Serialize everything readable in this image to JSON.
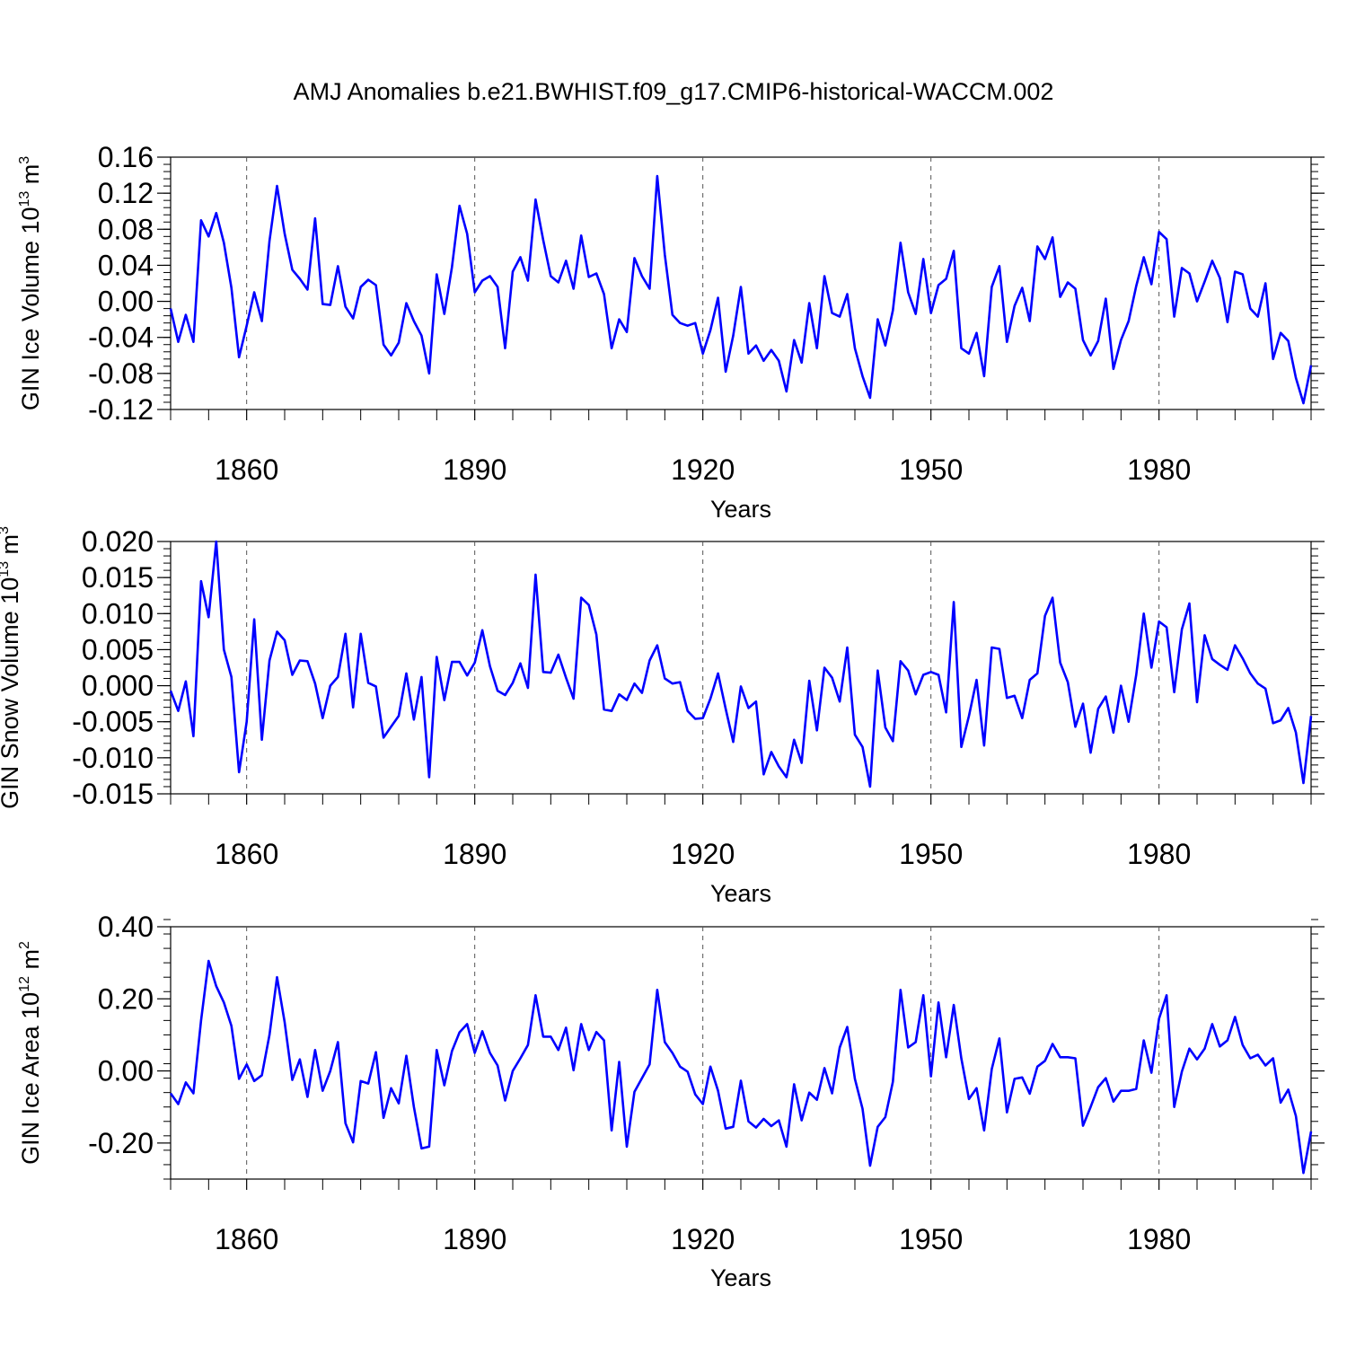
{
  "title": "AMJ Anomalies b.e21.BWHIST.f09_g17.CMIP6-historical-WACCM.002",
  "colors": {
    "line": "#0000ff",
    "axis": "#000000",
    "grid": "#555555"
  },
  "chart_data": [
    {
      "type": "line",
      "ylabel": {
        "text": "GIN Ice Volume 10",
        "sup": "13",
        "unit": " m",
        "unit_sup": "3"
      },
      "xlabel": "Years",
      "xlim": [
        1850,
        2000
      ],
      "ylim": [
        -0.12,
        0.16
      ],
      "x_ticks": [
        1860,
        1890,
        1920,
        1950,
        1980
      ],
      "y_ticks": [
        {
          "v": 0.16,
          "label": "0.16"
        },
        {
          "v": 0.12,
          "label": "0.12"
        },
        {
          "v": 0.08,
          "label": "0.08"
        },
        {
          "v": 0.04,
          "label": "0.04"
        },
        {
          "v": 0.0,
          "label": "0.00"
        },
        {
          "v": -0.04,
          "label": "-0.04"
        },
        {
          "v": -0.08,
          "label": "-0.08"
        },
        {
          "v": -0.12,
          "label": "-0.12"
        }
      ],
      "y_minor_step": 0.008,
      "x_start": 1850,
      "values": [
        -0.008,
        -0.045,
        -0.015,
        -0.045,
        0.09,
        0.072,
        0.098,
        0.065,
        0.015,
        -0.062,
        -0.027,
        0.01,
        -0.022,
        0.067,
        0.128,
        0.075,
        0.035,
        0.025,
        0.013,
        0.092,
        -0.003,
        -0.004,
        0.039,
        -0.006,
        -0.019,
        0.016,
        0.024,
        0.018,
        -0.048,
        -0.06,
        -0.046,
        -0.002,
        -0.022,
        -0.038,
        -0.08,
        0.03,
        -0.014,
        0.038,
        0.106,
        0.075,
        0.01,
        0.023,
        0.028,
        0.016,
        -0.052,
        0.033,
        0.049,
        0.023,
        0.113,
        0.068,
        0.028,
        0.021,
        0.045,
        0.014,
        0.073,
        0.027,
        0.031,
        0.008,
        -0.052,
        -0.02,
        -0.034,
        0.048,
        0.028,
        0.014,
        0.139,
        0.052,
        -0.015,
        -0.024,
        -0.027,
        -0.024,
        -0.058,
        -0.032,
        0.004,
        -0.078,
        -0.038,
        0.016,
        -0.058,
        -0.049,
        -0.066,
        -0.054,
        -0.066,
        -0.1,
        -0.043,
        -0.068,
        -0.002,
        -0.052,
        0.028,
        -0.013,
        -0.017,
        0.008,
        -0.052,
        -0.083,
        -0.107,
        -0.02,
        -0.049,
        -0.01,
        0.065,
        0.01,
        -0.014,
        0.047,
        -0.013,
        0.018,
        0.025,
        0.056,
        -0.052,
        -0.058,
        -0.035,
        -0.083,
        0.016,
        0.039,
        -0.045,
        -0.005,
        0.015,
        -0.022,
        0.061,
        0.047,
        0.071,
        0.005,
        0.021,
        0.014,
        -0.043,
        -0.06,
        -0.044,
        0.003,
        -0.075,
        -0.043,
        -0.022,
        0.017,
        0.049,
        0.019,
        0.077,
        0.069,
        -0.017,
        0.037,
        0.031,
        0.0,
        0.022,
        0.045,
        0.026,
        -0.023,
        0.033,
        0.03,
        -0.008,
        -0.017,
        0.02,
        -0.064,
        -0.035,
        -0.044,
        -0.085,
        -0.113,
        -0.071
      ]
    },
    {
      "type": "line",
      "ylabel": {
        "text": "GIN Snow Volume 10",
        "sup": "13",
        "unit": " m",
        "unit_sup": "3"
      },
      "xlabel": "Years",
      "xlim": [
        1850,
        2000
      ],
      "ylim": [
        -0.015,
        0.02
      ],
      "x_ticks": [
        1860,
        1890,
        1920,
        1950,
        1980
      ],
      "y_ticks": [
        {
          "v": 0.02,
          "label": "0.020"
        },
        {
          "v": 0.015,
          "label": "0.015"
        },
        {
          "v": 0.01,
          "label": "0.010"
        },
        {
          "v": 0.005,
          "label": "0.005"
        },
        {
          "v": 0.0,
          "label": "0.000"
        },
        {
          "v": -0.005,
          "label": "-0.005"
        },
        {
          "v": -0.01,
          "label": "-0.010"
        },
        {
          "v": -0.015,
          "label": "-0.015"
        }
      ],
      "y_minor_step": 0.001,
      "x_start": 1850,
      "values": [
        -0.0007,
        -0.0035,
        0.0006,
        -0.007,
        0.0145,
        0.0095,
        0.02,
        0.005,
        0.0012,
        -0.012,
        -0.005,
        0.0092,
        -0.0075,
        0.0035,
        0.0075,
        0.0063,
        0.0015,
        0.0035,
        0.0034,
        0.0003,
        -0.0045,
        0.0,
        0.0012,
        0.0072,
        -0.003,
        0.0072,
        0.0004,
        -0.0001,
        -0.0072,
        -0.0057,
        -0.0042,
        0.0017,
        -0.0047,
        0.0012,
        -0.0127,
        0.004,
        -0.002,
        0.0033,
        0.0033,
        0.0014,
        0.0032,
        0.0077,
        0.0027,
        -0.0007,
        -0.0013,
        0.0004,
        0.0031,
        -0.0003,
        0.0154,
        0.0019,
        0.0018,
        0.0043,
        0.0011,
        -0.0018,
        0.0122,
        0.0112,
        0.0071,
        -0.0033,
        -0.0035,
        -0.0012,
        -0.002,
        0.0003,
        -0.001,
        0.0035,
        0.0056,
        0.001,
        0.0003,
        0.0005,
        -0.0035,
        -0.0046,
        -0.0045,
        -0.0018,
        0.0017,
        -0.0032,
        -0.0078,
        -0.0001,
        -0.0031,
        -0.0022,
        -0.0123,
        -0.0092,
        -0.0112,
        -0.0127,
        -0.0075,
        -0.0107,
        0.0007,
        -0.0062,
        0.0025,
        0.0011,
        -0.0022,
        0.0053,
        -0.0068,
        -0.0085,
        -0.014,
        0.0021,
        -0.0058,
        -0.0077,
        0.0034,
        0.0021,
        -0.0012,
        0.0015,
        0.0019,
        0.0015,
        -0.0037,
        0.0116,
        -0.0085,
        -0.0042,
        0.0008,
        -0.0083,
        0.0053,
        0.0051,
        -0.0017,
        -0.0014,
        -0.0045,
        0.0008,
        0.0017,
        0.0097,
        0.0122,
        0.0032,
        0.0005,
        -0.0057,
        -0.0025,
        -0.0093,
        -0.0032,
        -0.0015,
        -0.0065,
        0.0,
        -0.005,
        0.0015,
        0.01,
        0.0025,
        0.0089,
        0.0081,
        -0.0009,
        0.0078,
        0.0114,
        -0.0023,
        0.007,
        0.0037,
        0.0029,
        0.0022,
        0.0056,
        0.0038,
        0.0017,
        0.0003,
        -0.0004,
        -0.0052,
        -0.0048,
        -0.0031,
        -0.0065,
        -0.0135,
        -0.0042
      ]
    },
    {
      "type": "line",
      "ylabel": {
        "text": "GIN Ice Area 10",
        "sup": "12",
        "unit": " m",
        "unit_sup": "2"
      },
      "xlabel": "Years",
      "xlim": [
        1850,
        2000
      ],
      "ylim": [
        -0.3,
        0.4
      ],
      "x_ticks": [
        1860,
        1890,
        1920,
        1950,
        1980
      ],
      "y_ticks": [
        {
          "v": 0.4,
          "label": "0.40"
        },
        {
          "v": 0.2,
          "label": "0.20"
        },
        {
          "v": 0.0,
          "label": "0.00"
        },
        {
          "v": -0.2,
          "label": "-0.20"
        }
      ],
      "y_minor_step": 0.04,
      "x_start": 1850,
      "values": [
        -0.062,
        -0.092,
        -0.032,
        -0.062,
        0.14,
        0.305,
        0.235,
        0.19,
        0.125,
        -0.022,
        0.018,
        -0.028,
        -0.012,
        0.1,
        0.26,
        0.135,
        -0.025,
        0.032,
        -0.072,
        0.058,
        -0.055,
        0.0,
        0.08,
        -0.145,
        -0.198,
        -0.028,
        -0.035,
        0.052,
        -0.13,
        -0.048,
        -0.09,
        0.042,
        -0.1,
        -0.215,
        -0.21,
        0.058,
        -0.04,
        0.055,
        0.107,
        0.13,
        0.05,
        0.11,
        0.05,
        0.015,
        -0.082,
        0.0,
        0.035,
        0.072,
        0.21,
        0.095,
        0.095,
        0.058,
        0.12,
        0.002,
        0.13,
        0.058,
        0.108,
        0.085,
        -0.165,
        0.025,
        -0.21,
        -0.058,
        -0.02,
        0.018,
        0.225,
        0.08,
        0.05,
        0.012,
        -0.002,
        -0.065,
        -0.092,
        0.012,
        -0.055,
        -0.16,
        -0.155,
        -0.027,
        -0.14,
        -0.157,
        -0.133,
        -0.153,
        -0.137,
        -0.21,
        -0.037,
        -0.137,
        -0.06,
        -0.08,
        0.008,
        -0.062,
        0.065,
        0.122,
        -0.022,
        -0.105,
        -0.263,
        -0.155,
        -0.128,
        -0.03,
        0.225,
        0.065,
        0.08,
        0.21,
        -0.015,
        0.19,
        0.038,
        0.183,
        0.035,
        -0.078,
        -0.048,
        -0.165,
        0.005,
        0.09,
        -0.115,
        -0.022,
        -0.018,
        -0.063,
        0.012,
        0.028,
        0.075,
        0.038,
        0.038,
        0.035,
        -0.152,
        -0.1,
        -0.045,
        -0.02,
        -0.085,
        -0.055,
        -0.055,
        -0.05,
        0.085,
        -0.005,
        0.145,
        0.21,
        -0.1,
        -0.002,
        0.062,
        0.032,
        0.062,
        0.13,
        0.068,
        0.085,
        0.15,
        0.072,
        0.035,
        0.045,
        0.015,
        0.035,
        -0.088,
        -0.052,
        -0.125,
        -0.283,
        -0.168
      ]
    }
  ]
}
